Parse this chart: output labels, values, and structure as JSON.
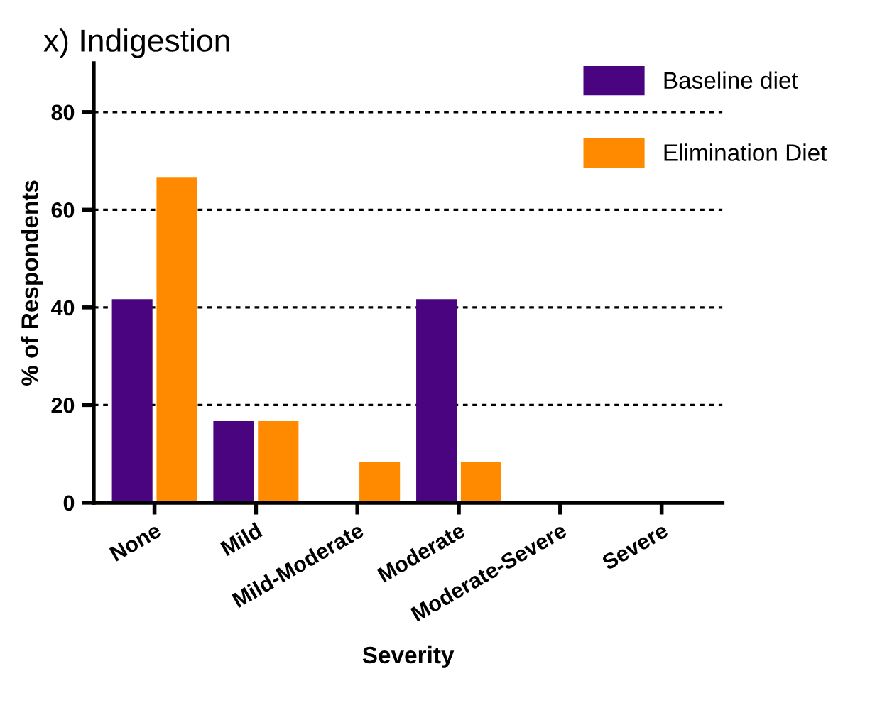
{
  "chart_data": {
    "type": "bar",
    "title": "x) Indigestion",
    "xlabel": "Severity",
    "ylabel": "% of Respondents",
    "categories": [
      "None",
      "Mild",
      "Mild-Moderate",
      "Moderate",
      "Moderate-Severe",
      "Severe"
    ],
    "series": [
      {
        "name": "Baseline diet",
        "color": "#4a0480",
        "values": [
          41.7,
          16.7,
          0,
          41.7,
          0,
          0
        ]
      },
      {
        "name": "Elimination Diet",
        "color": "#ff8a00",
        "values": [
          66.7,
          16.7,
          8.3,
          8.3,
          0,
          0
        ]
      }
    ],
    "ylim": [
      0,
      90
    ],
    "yticks": [
      0,
      20,
      40,
      60,
      80
    ],
    "grid": "y",
    "legend": "top right"
  }
}
